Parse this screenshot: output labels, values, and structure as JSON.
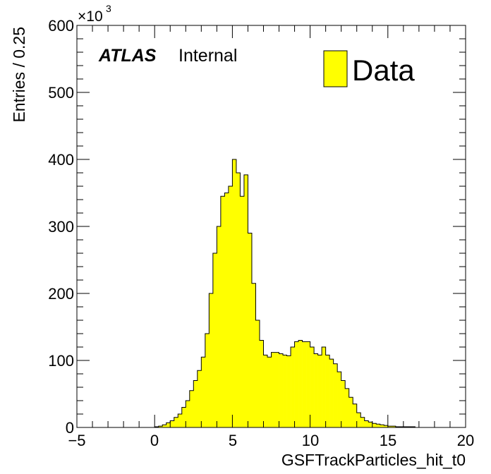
{
  "chart_data": {
    "type": "bar",
    "title": "",
    "xlabel": "GSFTrackParticles_hit_t0",
    "ylabel": "Entries / 0.25",
    "y_exponent": "×10",
    "y_exponent_power": "3",
    "xlim": [
      -5,
      20
    ],
    "ylim": [
      0,
      600
    ],
    "x_ticks": [
      "−5",
      "0",
      "5",
      "10",
      "15",
      "20"
    ],
    "x_tick_values": [
      -5,
      0,
      5,
      10,
      15,
      20
    ],
    "y_ticks": [
      "0",
      "100",
      "200",
      "300",
      "400",
      "500",
      "600"
    ],
    "y_tick_values": [
      0,
      100,
      200,
      300,
      400,
      500,
      600
    ],
    "bin_width": 0.25,
    "fill_color": "#ffff00",
    "line_color": "#000000",
    "annotation": {
      "atlas": "ATLAS",
      "label": "Internal"
    },
    "legend": {
      "position": "top-right",
      "entries": [
        "Data"
      ]
    },
    "series": [
      {
        "name": "Data",
        "bin_starts": [
          0.0,
          0.25,
          0.5,
          0.75,
          1.0,
          1.25,
          1.5,
          1.75,
          2.0,
          2.25,
          2.5,
          2.75,
          3.0,
          3.25,
          3.5,
          3.75,
          4.0,
          4.25,
          4.5,
          4.75,
          5.0,
          5.25,
          5.5,
          5.75,
          6.0,
          6.25,
          6.5,
          6.75,
          7.0,
          7.25,
          7.5,
          7.75,
          8.0,
          8.25,
          8.5,
          8.75,
          9.0,
          9.25,
          9.5,
          9.75,
          10.0,
          10.25,
          10.5,
          10.75,
          11.0,
          11.25,
          11.5,
          11.75,
          12.0,
          12.25,
          12.5,
          12.75,
          13.0,
          13.25,
          13.5,
          13.75,
          14.0,
          14.25,
          14.5,
          14.75,
          15.0,
          15.25,
          15.5,
          15.75,
          16.0,
          16.25,
          16.5,
          16.75,
          17.0
        ],
        "values": [
          1,
          2,
          4,
          7,
          10,
          15,
          20,
          30,
          40,
          55,
          70,
          85,
          105,
          140,
          200,
          260,
          300,
          345,
          350,
          360,
          400,
          380,
          345,
          377,
          290,
          215,
          160,
          130,
          108,
          105,
          112,
          112,
          110,
          108,
          107,
          120,
          128,
          130,
          128,
          128,
          120,
          110,
          108,
          120,
          108,
          102,
          95,
          83,
          70,
          58,
          45,
          35,
          22,
          15,
          10,
          8,
          6,
          5,
          4,
          3,
          2,
          2,
          1,
          1,
          1,
          1,
          1,
          0,
          0
        ]
      }
    ]
  }
}
